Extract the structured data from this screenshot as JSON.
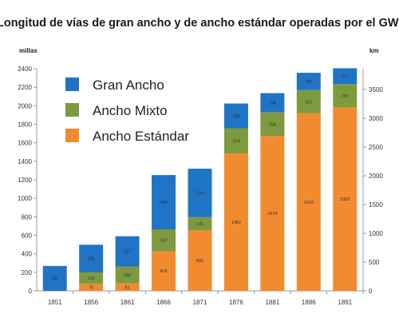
{
  "chart_data": {
    "type": "bar",
    "stacked": true,
    "title": "Longitud de vías de gran ancho y de ancho estándar operadas por el GWR",
    "ylabel_left": "millas",
    "ylabel_right": "km",
    "categories": [
      "1851",
      "1856",
      "1861",
      "1866",
      "1871",
      "1876",
      "1881",
      "1886",
      "1891"
    ],
    "series": [
      {
        "name": "Ancho Estándar",
        "color": "#f28a30",
        "values": [
          0,
          75,
          81,
          428,
          655,
          1482,
          1674,
          1918,
          1982
        ]
      },
      {
        "name": "Ancho Mixto",
        "color": "#7d9a3e",
        "values": [
          0,
          124,
          182,
          237,
          141,
          274,
          254,
          251,
          252
        ]
      },
      {
        "name": "Gran Ancho",
        "color": "#1f74c6",
        "values": [
          269,
          299,
          327,
          586,
          524,
          268,
          208,
          187,
          171
        ]
      }
    ],
    "segment_labels": [
      [
        "",
        "269"
      ],
      [
        "75",
        "124",
        "299"
      ],
      [
        "81",
        "182",
        "327"
      ],
      [
        "428",
        "237",
        "586"
      ],
      [
        "655",
        "141",
        "524"
      ],
      [
        "1482",
        "274",
        "268"
      ],
      [
        "1674",
        "254",
        "208"
      ],
      [
        "1918",
        "251",
        "187"
      ],
      [
        "1982",
        "252",
        "171"
      ]
    ],
    "legend_order": [
      "Gran Ancho",
      "Ancho Mixto",
      "Ancho Estándar"
    ],
    "legend_placement": "top-left",
    "ylim_left": [
      0,
      2400
    ],
    "yticks_left": [
      0,
      200,
      400,
      600,
      800,
      1000,
      1200,
      1400,
      1600,
      1800,
      2000,
      2200,
      2400
    ],
    "ylim_right": [
      0,
      3862
    ],
    "yticks_right": [
      0,
      500,
      1000,
      1500,
      2000,
      2500,
      3000,
      3500
    ],
    "grid": false
  }
}
